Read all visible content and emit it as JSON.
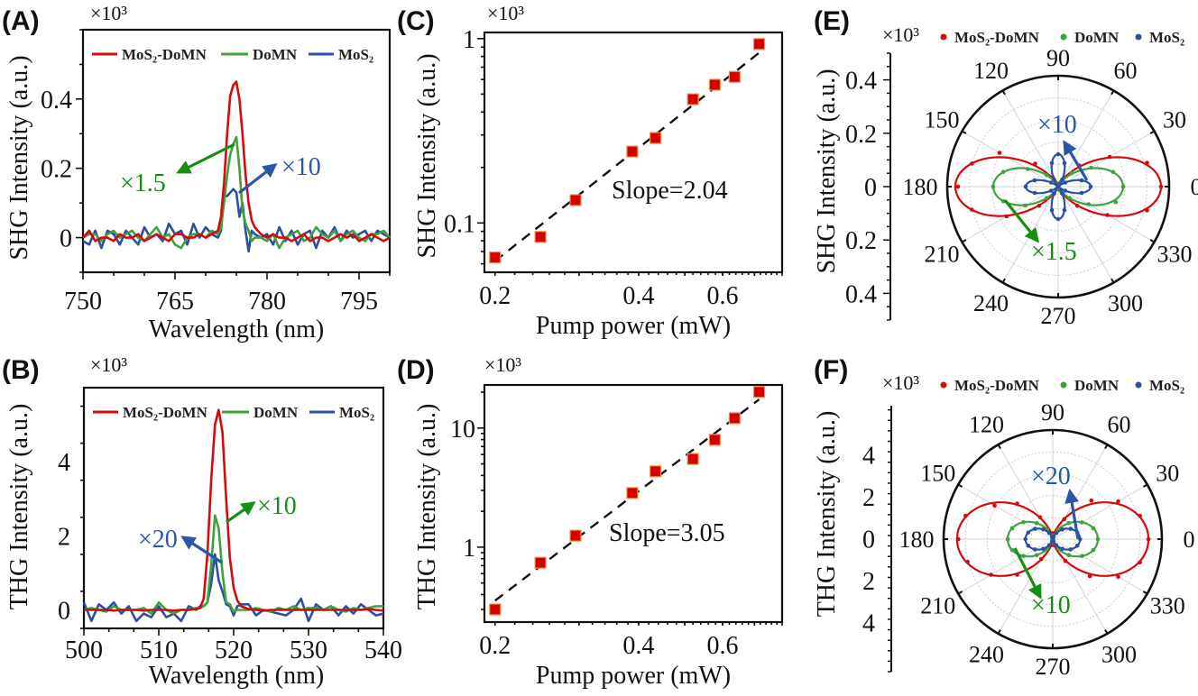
{
  "colors": {
    "red": "#d60a0a",
    "green": "#3ea23e",
    "blue": "#2b4fa3",
    "green_ann": "#139013",
    "blue_ann": "#2b55a8",
    "marker_edge": "#f3934f"
  },
  "chart_data": [
    {
      "panel": "(A)",
      "type": "line",
      "multiplier": "×10³",
      "xlabel": "Wavelength (nm)",
      "ylabel": "SHG Intensity (a.u.)",
      "xlim": [
        750,
        800
      ],
      "ylim": [
        -0.1,
        0.6
      ],
      "xticks": [
        750,
        765,
        780,
        795
      ],
      "xtick_labels": [
        "750",
        "765",
        "780",
        "795"
      ],
      "yticks": [
        0,
        0.2,
        0.4
      ],
      "ytick_labels": [
        "0",
        "0.2",
        "0.4"
      ],
      "legend": "top",
      "x": [
        750,
        751,
        752,
        753,
        754,
        755,
        756,
        757,
        758,
        759,
        760,
        761,
        762,
        763,
        764,
        765,
        766,
        767,
        768,
        769,
        770,
        771,
        772,
        772.5,
        773,
        773.5,
        774,
        774.5,
        775,
        775.5,
        776,
        776.5,
        777,
        777.5,
        778,
        779,
        780,
        781,
        782,
        783,
        784,
        785,
        786,
        787,
        788,
        789,
        790,
        791,
        792,
        793,
        794,
        795,
        796,
        797,
        798,
        799,
        800
      ],
      "series": [
        {
          "name": "MoS₂-DoMN",
          "color": "#d60a0a",
          "values": [
            0,
            0.02,
            -0.01,
            0,
            0,
            -0.01,
            0.01,
            0,
            0,
            0.01,
            -0.01,
            0,
            0.01,
            0,
            -0.01,
            0.01,
            0.01,
            0,
            0,
            0.01,
            0,
            0.01,
            0.02,
            0.06,
            0.16,
            0.3,
            0.41,
            0.44,
            0.45,
            0.4,
            0.3,
            0.18,
            0.1,
            0.05,
            0.03,
            0.01,
            0,
            0.01,
            0,
            0,
            -0.01,
            0,
            0.01,
            -0.01,
            0,
            0,
            -0.01,
            0,
            0.01,
            0,
            0.01,
            -0.01,
            0,
            0.01,
            0,
            -0.01,
            0
          ]
        },
        {
          "name": "DoMN",
          "color": "#3ea23e",
          "values": [
            0,
            0.01,
            0.01,
            -0.01,
            0.01,
            0.02,
            0,
            0.01,
            0.02,
            0,
            -0.01,
            0.01,
            0.03,
            0,
            0.01,
            -0.02,
            -0.03,
            0,
            0.01,
            0.01,
            0,
            0.02,
            0.01,
            0.03,
            0.1,
            0.18,
            0.24,
            0.27,
            0.29,
            0.2,
            0.08,
            0.04,
            0.02,
            -0.01,
            0,
            0,
            -0.01,
            0.01,
            -0.03,
            0,
            0.01,
            0.02,
            -0.01,
            0,
            0.03,
            0.01,
            0,
            0.02,
            -0.01,
            0.01,
            0.02,
            0,
            -0.01,
            0.01,
            0.01,
            0.02,
            0
          ]
        },
        {
          "name": "MoS₂",
          "color": "#2b4fa3",
          "values": [
            -0.01,
            -0.02,
            0.02,
            -0.03,
            0.02,
            0.01,
            -0.02,
            0.02,
            0,
            -0.02,
            0.03,
            0,
            0.01,
            -0.01,
            0.04,
            0.01,
            0.02,
            -0.02,
            0.04,
            0,
            0.03,
            0.01,
            0,
            0.02,
            0.12,
            0.12,
            0.13,
            0.14,
            0.13,
            0.06,
            0.1,
            0.02,
            -0.04,
            0.02,
            0.01,
            0,
            0.01,
            -0.02,
            0.03,
            -0.01,
            0.02,
            -0.02,
            0.01,
            0.02,
            -0.03,
            0.02,
            0,
            0.03,
            -0.01,
            0.02,
            0,
            0.01,
            0.02,
            -0.01,
            0.02,
            0.01,
            0
          ]
        }
      ],
      "annotations": [
        {
          "text": "×1.5",
          "color": "#139013"
        },
        {
          "text": "×10",
          "color": "#2b55a8"
        }
      ]
    },
    {
      "panel": "(B)",
      "type": "line",
      "multiplier": "×10³",
      "xlabel": "Wavelength (nm)",
      "ylabel": "THG Intensity (a.u.)",
      "xlim": [
        500,
        540
      ],
      "ylim": [
        -0.5,
        6
      ],
      "xticks": [
        500,
        510,
        520,
        530,
        540
      ],
      "xtick_labels": [
        "500",
        "510",
        "520",
        "530",
        "540"
      ],
      "yticks": [
        0,
        2,
        4
      ],
      "ytick_labels": [
        "0",
        "2",
        "4"
      ],
      "legend": "top",
      "x": [
        500,
        501,
        502,
        503,
        504,
        505,
        506,
        507,
        508,
        509,
        510,
        511,
        512,
        513,
        514,
        515,
        515.5,
        516,
        516.5,
        517,
        517.5,
        518,
        518.5,
        519,
        519.5,
        520,
        520.5,
        521,
        522,
        523,
        524,
        525,
        526,
        527,
        528,
        529,
        530,
        531,
        532,
        533,
        534,
        535,
        536,
        537,
        538,
        539,
        540
      ],
      "series": [
        {
          "name": "MoS₂-DoMN",
          "color": "#d60a0a",
          "values": [
            0,
            0,
            0,
            0,
            -0.02,
            0,
            0,
            0,
            -0.02,
            0,
            0,
            0,
            -0.02,
            0,
            0,
            0.02,
            0.05,
            0.3,
            1.5,
            3.5,
            5.0,
            5.4,
            4.8,
            3.0,
            1.4,
            0.6,
            0.25,
            0.1,
            0.02,
            0,
            -0.02,
            0,
            0,
            0,
            0,
            0,
            0,
            0,
            0,
            0,
            0,
            0,
            0,
            0,
            0.02,
            0,
            -0.02
          ]
        },
        {
          "name": "DoMN",
          "color": "#3ea23e",
          "values": [
            0,
            0.05,
            0,
            -0.05,
            0.1,
            0,
            0,
            0,
            0.05,
            -0.1,
            0.2,
            0,
            -0.1,
            0,
            0,
            0.05,
            0.05,
            0.1,
            0.2,
            1.2,
            2.55,
            2.2,
            1.0,
            0.2,
            0.15,
            -0.05,
            0,
            0,
            0,
            0.05,
            0,
            -0.05,
            0.05,
            0,
            0.1,
            0,
            0.05,
            0.05,
            0,
            0.1,
            0,
            -0.05,
            0.05,
            0,
            0.05,
            0.1,
            0.1
          ]
        },
        {
          "name": "MoS₂",
          "color": "#2b4fa3",
          "values": [
            0.2,
            -0.3,
            0.15,
            0,
            0.2,
            -0.1,
            0.1,
            -0.3,
            -0.1,
            -0.2,
            0.1,
            -0.2,
            -0.1,
            -0.3,
            0.1,
            0,
            0.1,
            0.1,
            0.2,
            0.7,
            1.5,
            0.8,
            0.5,
            0.15,
            0.1,
            -0.15,
            0.1,
            0.15,
            0.15,
            -0.15,
            0,
            -0.05,
            -0.1,
            -0.15,
            0,
            0.3,
            -0.3,
            0.15,
            0,
            0.1,
            -0.15,
            0.1,
            -0.1,
            0.15,
            0,
            -0.15,
            -0.1
          ]
        }
      ],
      "annotations": [
        {
          "text": "×10",
          "color": "#139013"
        },
        {
          "text": "×20",
          "color": "#2b55a8"
        }
      ]
    },
    {
      "panel": "(C)",
      "type": "scatter",
      "multiplier": "×10³",
      "xlabel": "Pump power (mW)",
      "ylabel": "SHG Intensity (a.u.)",
      "xscale": "log",
      "yscale": "log",
      "xlim": [
        0.19,
        0.8
      ],
      "ylim": [
        0.054,
        1.08
      ],
      "xticks": [
        0.2,
        0.4,
        0.6
      ],
      "xtick_labels": [
        "0.2",
        "0.4",
        "0.6"
      ],
      "yticks": [
        0.1,
        1
      ],
      "ytick_labels": [
        "0.1",
        "1"
      ],
      "x": [
        0.2,
        0.249,
        0.295,
        0.388,
        0.434,
        0.52,
        0.578,
        0.636,
        0.716
      ],
      "y": [
        0.065,
        0.084,
        0.133,
        0.244,
        0.289,
        0.469,
        0.562,
        0.62,
        0.935
      ],
      "fit": {
        "type": "power-law",
        "slope": 2.04,
        "style": "dashed"
      },
      "annotation": "Slope=2.04"
    },
    {
      "panel": "(D)",
      "type": "scatter",
      "multiplier": "×10³",
      "xlabel": "Pump power (mW)",
      "ylabel": "THG Intensity (a.u.)",
      "xscale": "log",
      "yscale": "log",
      "xlim": [
        0.19,
        0.8
      ],
      "ylim": [
        0.235,
        23
      ],
      "xticks": [
        0.2,
        0.4,
        0.6
      ],
      "xtick_labels": [
        "0.2",
        "0.4",
        "0.6"
      ],
      "yticks": [
        1,
        10
      ],
      "ytick_labels": [
        "1",
        "10"
      ],
      "x": [
        0.2,
        0.249,
        0.295,
        0.388,
        0.434,
        0.52,
        0.578,
        0.636,
        0.716
      ],
      "y": [
        0.3,
        0.74,
        1.25,
        2.85,
        4.33,
        5.5,
        7.96,
        12.1,
        20.1
      ],
      "fit": {
        "type": "power-law",
        "slope": 3.05,
        "style": "dashed"
      },
      "annotation": "Slope=3.05"
    },
    {
      "panel": "(E)",
      "type": "polar-scatter",
      "multiplier": "×10³",
      "ylabel": "SHG Intensity (a.u.)",
      "rmax": 0.41,
      "yticks_labels": [
        "0.4",
        "0.2",
        "0",
        "0.2",
        "0.4"
      ],
      "angle_labels": [
        "0",
        "30",
        "60",
        "90",
        "120",
        "150",
        "180",
        "210",
        "240",
        "270",
        "300",
        "330"
      ],
      "legend": "top",
      "angles": [
        0,
        15,
        30,
        45,
        60,
        75,
        90,
        105,
        120,
        135,
        150,
        165,
        180,
        195,
        210,
        225,
        240,
        255,
        270,
        285,
        300,
        315,
        330,
        345
      ],
      "series": [
        {
          "name": "MoS₂-DoMN",
          "color": "#d60a0a",
          "r": [
            0.38,
            0.34,
            0.22,
            0.11,
            0.03,
            0.01,
            0,
            0.01,
            0.04,
            0.12,
            0.25,
            0.33,
            0.37,
            0.33,
            0.22,
            0.1,
            0.03,
            0.01,
            0,
            0.01,
            0.03,
            0.1,
            0.21,
            0.34
          ]
        },
        {
          "name": "DoMN",
          "color": "#3ea23e",
          "r": [
            0.24,
            0.21,
            0.14,
            0.07,
            0.02,
            0,
            0,
            0,
            0.02,
            0.06,
            0.13,
            0.21,
            0.24,
            0.21,
            0.14,
            0.06,
            0.01,
            0,
            0,
            0,
            0.02,
            0.06,
            0.13,
            0.22
          ]
        },
        {
          "name": "MoS₂",
          "color": "#2b4fa3",
          "r": [
            0.12,
            0.09,
            0.03,
            0,
            0.03,
            0.09,
            0.12,
            0.09,
            0.03,
            0,
            0.03,
            0.09,
            0.12,
            0.09,
            0.03,
            0,
            0.03,
            0.09,
            0.12,
            0.09,
            0.03,
            0,
            0.03,
            0.09
          ]
        }
      ],
      "annotations": [
        {
          "text": "×10",
          "color": "#2b55a8"
        },
        {
          "text": "×1.5",
          "color": "#139013"
        }
      ]
    },
    {
      "panel": "(F)",
      "type": "polar-scatter",
      "multiplier": "×10³",
      "ylabel": "THG Intensity (a.u.)",
      "rmax": 5.2,
      "yticks_labels": [
        "4",
        "2",
        "0",
        "2",
        "4"
      ],
      "angle_labels": [
        "0",
        "30",
        "60",
        "90",
        "120",
        "150",
        "180",
        "210",
        "240",
        "270",
        "300",
        "330"
      ],
      "legend": "top",
      "angles": [
        0,
        15,
        30,
        45,
        60,
        75,
        90,
        105,
        120,
        135,
        150,
        165,
        180,
        195,
        210,
        225,
        240,
        255,
        270,
        285,
        300,
        315,
        330,
        345
      ],
      "series": [
        {
          "name": "MoS₂-DoMN",
          "color": "#d60a0a",
          "r": [
            4.56,
            4.3,
            3.6,
            2.6,
            1.1,
            0.3,
            0,
            0.3,
            1.2,
            2.4,
            3.2,
            4.3,
            4.5,
            4.2,
            3.4,
            2.4,
            1.1,
            0.3,
            0,
            0.3,
            1.2,
            2.5,
            3.6,
            4.3
          ]
        },
        {
          "name": "DoMN",
          "color": "#3ea23e",
          "r": [
            2.15,
            2.0,
            1.6,
            1.08,
            0.54,
            0.14,
            0,
            0.14,
            0.54,
            1.08,
            1.61,
            2.0,
            2.15,
            2.0,
            1.61,
            1.08,
            0.54,
            0.14,
            0,
            0.14,
            0.54,
            1.08,
            1.61,
            2.0
          ]
        },
        {
          "name": "MoS₂",
          "color": "#2b4fa3",
          "r": [
            1.3,
            1.21,
            0.98,
            0.65,
            0.33,
            0.09,
            0,
            0.09,
            0.33,
            0.65,
            0.98,
            1.21,
            1.3,
            1.21,
            0.98,
            0.65,
            0.33,
            0.09,
            0,
            0.09,
            0.33,
            0.65,
            0.98,
            1.21
          ]
        }
      ],
      "annotations": [
        {
          "text": "×20",
          "color": "#2b55a8"
        },
        {
          "text": "×10",
          "color": "#139013"
        }
      ]
    }
  ]
}
